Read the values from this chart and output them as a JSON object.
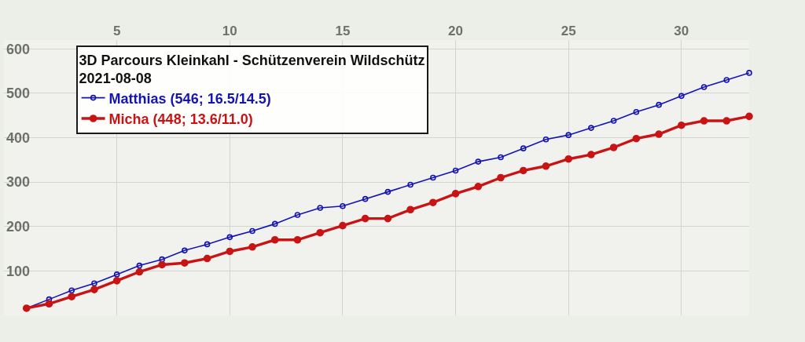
{
  "chart_data": {
    "type": "line",
    "title": "3D Parcours Kleinkahl - Schützenverein Wildschütz",
    "subtitle": "2021-08-08",
    "x": [
      1,
      2,
      3,
      4,
      5,
      6,
      7,
      8,
      9,
      10,
      11,
      12,
      13,
      14,
      15,
      16,
      17,
      18,
      19,
      20,
      21,
      22,
      23,
      24,
      25,
      26,
      27,
      28,
      29,
      30,
      31,
      32,
      33
    ],
    "series": [
      {
        "name": "Matthias (546; 16.5/14.5)",
        "color": "#1414b4",
        "values": [
          16,
          36,
          56,
          72,
          92,
          112,
          126,
          146,
          160,
          176,
          190,
          206,
          226,
          242,
          246,
          262,
          278,
          294,
          310,
          326,
          346,
          356,
          376,
          396,
          406,
          422,
          438,
          458,
          474,
          494,
          514,
          530,
          546
        ]
      },
      {
        "name": "Micha (448; 13.6/11.0)",
        "color": "#c81414",
        "values": [
          16,
          26,
          42,
          58,
          78,
          98,
          114,
          118,
          128,
          144,
          154,
          170,
          170,
          186,
          202,
          218,
          218,
          238,
          254,
          274,
          290,
          310,
          326,
          336,
          352,
          362,
          378,
          398,
          408,
          428,
          438,
          438,
          448
        ]
      }
    ],
    "xlim": [
      0,
      33
    ],
    "ylim": [
      0,
      620
    ],
    "xticks": [
      5,
      10,
      15,
      20,
      25,
      30
    ],
    "yticks": [
      {
        "value": 0,
        "label": null
      },
      100,
      200,
      300,
      400,
      500,
      600
    ],
    "grid": true,
    "legend": "top left",
    "marker": "circle",
    "line_style": "solid"
  }
}
